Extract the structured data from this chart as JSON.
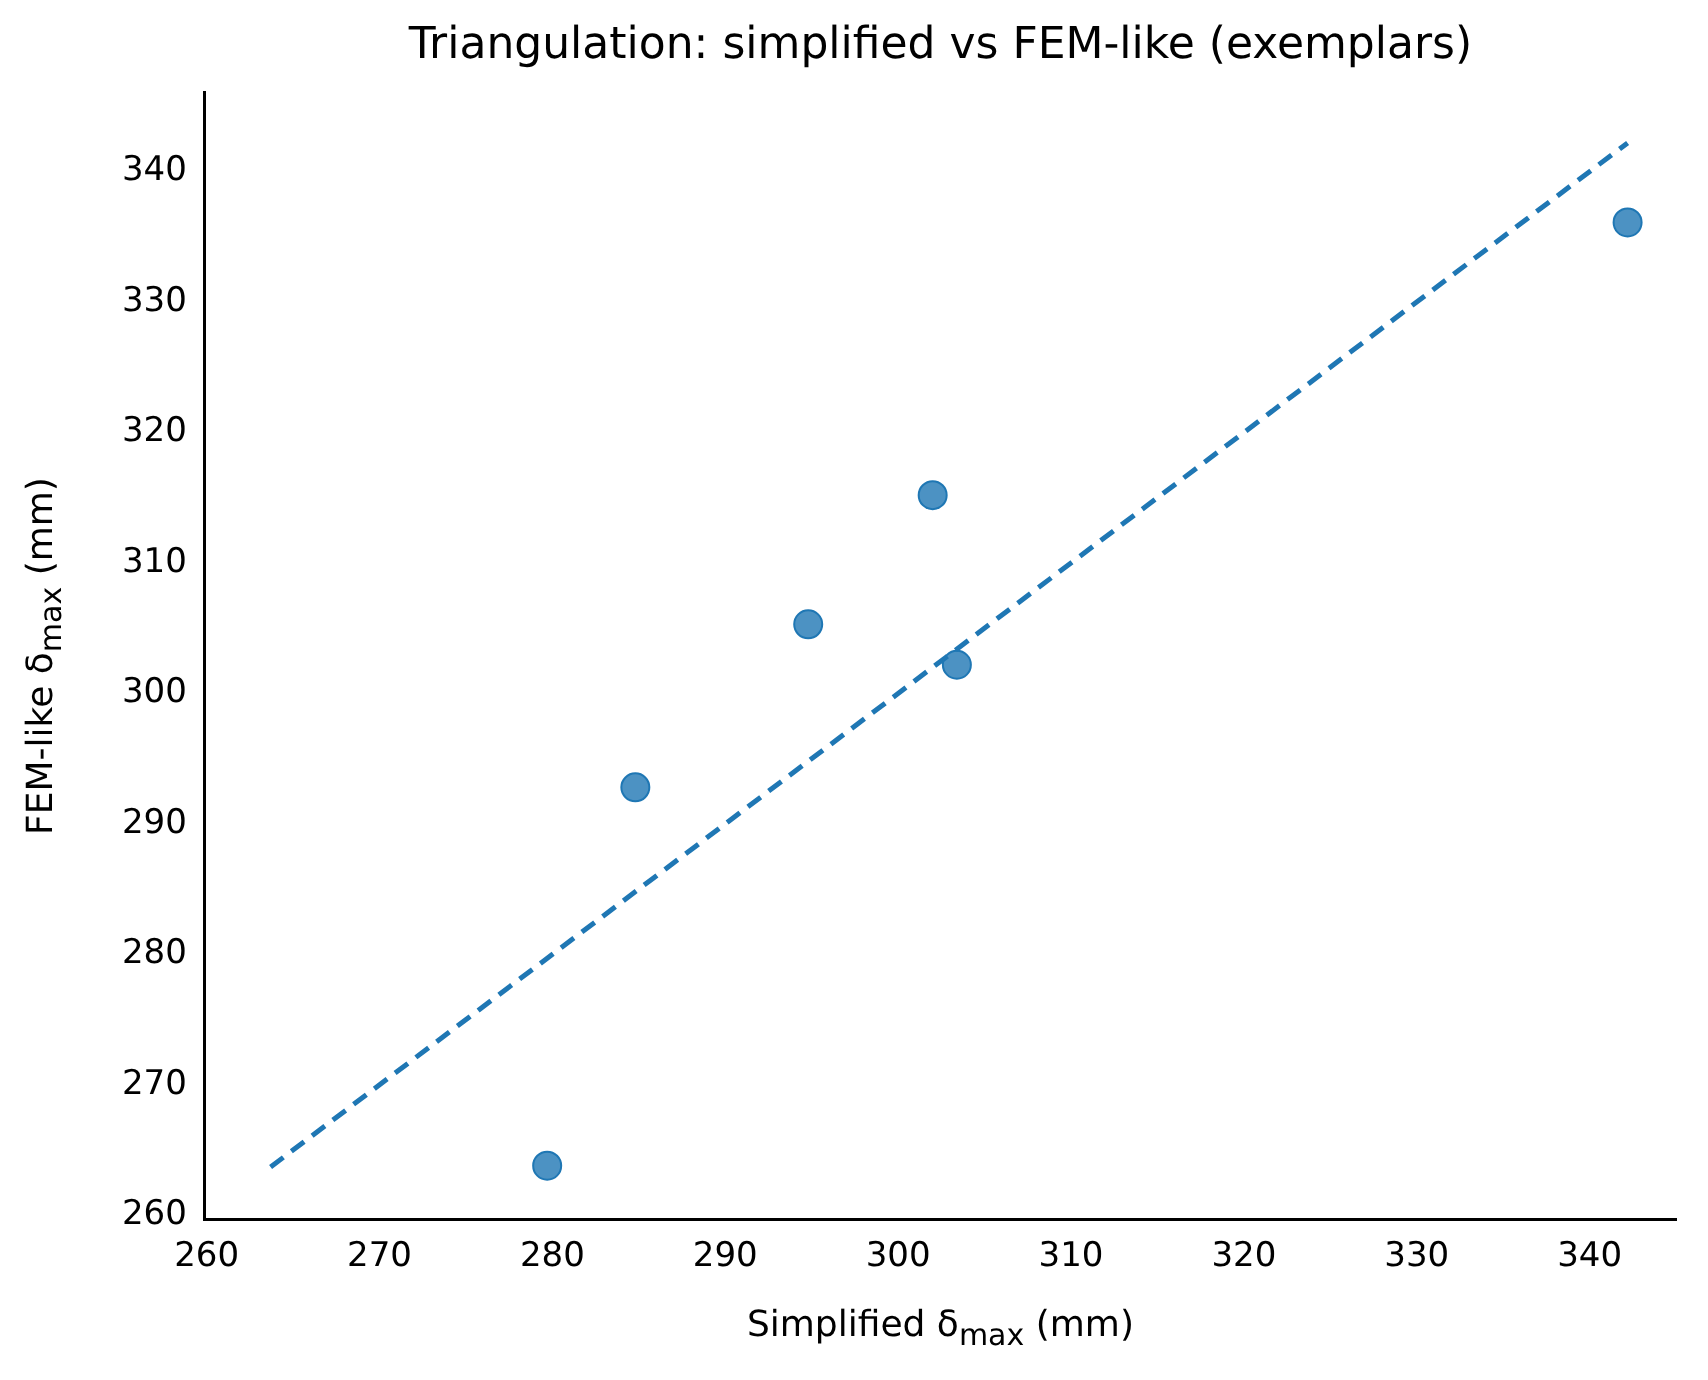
{
  "chart_data": {
    "type": "scatter",
    "title": "Triangulation: simplified vs FEM-like (exemplars)",
    "xlabel": "Simplified δ$_{max}$ (mm)",
    "ylabel": "FEM-like δ$_{max}$ (mm)",
    "xlim": [
      259.9,
      345.0
    ],
    "ylim": [
      259.7,
      346.1
    ],
    "xticks": [
      260,
      270,
      280,
      290,
      300,
      310,
      320,
      330,
      340
    ],
    "yticks": [
      260,
      270,
      280,
      290,
      300,
      310,
      320,
      330,
      340
    ],
    "grid": false,
    "legend": false,
    "series": [
      {
        "marker": "circle",
        "color": "#1f77b4",
        "x": [
          279.7,
          284.8,
          294.8,
          302.0,
          303.4,
          342.2
        ],
        "values": [
          263.8,
          292.8,
          305.3,
          315.2,
          302.2,
          336.1
        ]
      },
      {
        "type": "line",
        "marker": "none",
        "color": "#1f77b4",
        "line_style": "dashed",
        "x": [
          263.7,
          342.2
        ],
        "values": [
          263.7,
          342.2
        ]
      }
    ]
  }
}
